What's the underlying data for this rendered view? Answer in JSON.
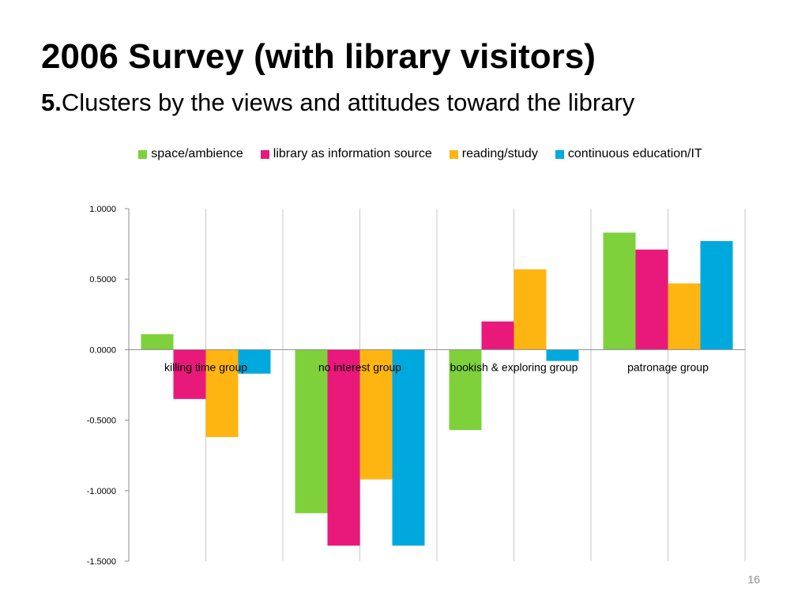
{
  "slide": {
    "title": "2006 Survey (with library visitors)",
    "subtitle_number": "5.",
    "subtitle_text": "Clusters by the views and attitudes toward the library",
    "page_number": "16"
  },
  "chart_data": {
    "type": "bar",
    "categories": [
      "killing time group",
      "no interest group",
      "bookish & exploring group",
      "patronage group"
    ],
    "series": [
      {
        "name": "space/ambience",
        "color": "#7ed13b",
        "values": [
          0.11,
          -1.16,
          -0.57,
          0.83
        ]
      },
      {
        "name": "library as information source",
        "color": "#e8197a",
        "values": [
          -0.35,
          -1.39,
          0.2,
          0.71
        ]
      },
      {
        "name": "reading/study",
        "color": "#ffb511",
        "values": [
          -0.62,
          -0.92,
          0.57,
          0.47
        ]
      },
      {
        "name": "continuous education/IT",
        "color": "#00a9dd",
        "values": [
          -0.17,
          -1.39,
          -0.08,
          0.77
        ]
      }
    ],
    "ylim": [
      -1.5,
      1.0
    ],
    "yticks": [
      "1.0000",
      "0.5000",
      "0.0000",
      "-0.5000",
      "-1.0000",
      "-1.5000"
    ],
    "ytick_values": [
      1.0,
      0.5,
      0.0,
      -0.5,
      -1.0,
      -1.5
    ],
    "grid": "vertical",
    "legend": "top",
    "xlabel": "",
    "ylabel": ""
  }
}
